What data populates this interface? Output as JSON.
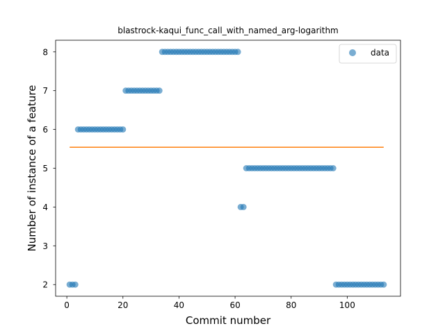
{
  "chart_data": {
    "type": "scatter",
    "title": "blastrock-kaqui_func_call_with_named_arg-logarithm",
    "xlabel": "Commit number",
    "ylabel": "Number of instance of a feature",
    "xlim": [
      -4,
      119
    ],
    "ylim": [
      1.7,
      8.3
    ],
    "xticks": [
      0,
      20,
      40,
      60,
      80,
      100
    ],
    "yticks": [
      2,
      3,
      4,
      5,
      6,
      7,
      8
    ],
    "grid": false,
    "legend_position": "top-right",
    "colors": {
      "data": "#1f77b4",
      "trend": "#ff7f0e"
    },
    "series": [
      {
        "name": "data",
        "style": "markers",
        "x": [
          1,
          2,
          3,
          4,
          5,
          6,
          7,
          8,
          9,
          10,
          11,
          12,
          13,
          14,
          15,
          16,
          17,
          18,
          19,
          20,
          21,
          22,
          23,
          24,
          25,
          26,
          27,
          28,
          29,
          30,
          31,
          32,
          33,
          34,
          35,
          36,
          37,
          38,
          39,
          40,
          41,
          42,
          43,
          44,
          45,
          46,
          47,
          48,
          49,
          50,
          51,
          52,
          53,
          54,
          55,
          56,
          57,
          58,
          59,
          60,
          61,
          62,
          63,
          64,
          65,
          66,
          67,
          68,
          69,
          70,
          71,
          72,
          73,
          74,
          75,
          76,
          77,
          78,
          79,
          80,
          81,
          82,
          83,
          84,
          85,
          86,
          87,
          88,
          89,
          90,
          91,
          92,
          93,
          94,
          95,
          96,
          97,
          98,
          99,
          100,
          101,
          102,
          103,
          104,
          105,
          106,
          107,
          108,
          109,
          110,
          111,
          112,
          113
        ],
        "y": [
          2,
          2,
          2,
          6,
          6,
          6,
          6,
          6,
          6,
          6,
          6,
          6,
          6,
          6,
          6,
          6,
          6,
          6,
          6,
          6,
          7,
          7,
          7,
          7,
          7,
          7,
          7,
          7,
          7,
          7,
          7,
          7,
          7,
          8,
          8,
          8,
          8,
          8,
          8,
          8,
          8,
          8,
          8,
          8,
          8,
          8,
          8,
          8,
          8,
          8,
          8,
          8,
          8,
          8,
          8,
          8,
          8,
          8,
          8,
          8,
          8,
          4,
          4,
          5,
          5,
          5,
          5,
          5,
          5,
          5,
          5,
          5,
          5,
          5,
          5,
          5,
          5,
          5,
          5,
          5,
          5,
          5,
          5,
          5,
          5,
          5,
          5,
          5,
          5,
          5,
          5,
          5,
          5,
          5,
          5,
          2,
          2,
          2,
          2,
          2,
          2,
          2,
          2,
          2,
          2,
          2,
          2,
          2,
          2,
          2,
          2,
          2,
          2
        ]
      },
      {
        "name": "",
        "style": "line",
        "x": [
          1,
          113
        ],
        "y": [
          5.54,
          5.54
        ]
      }
    ]
  }
}
